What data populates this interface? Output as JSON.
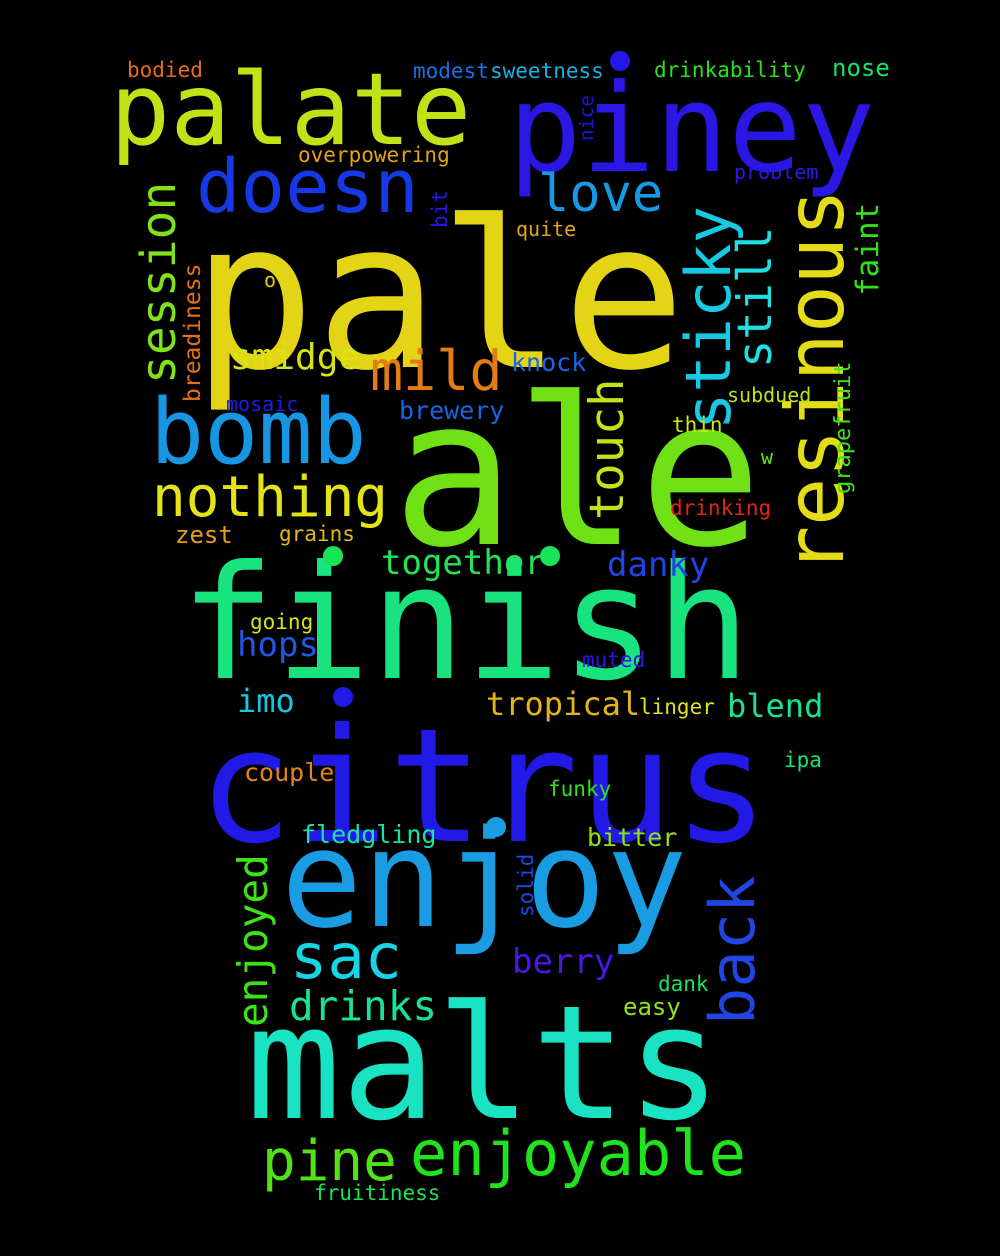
{
  "words": [
    {
      "id": "pale",
      "text": "pale",
      "color": "#e3d415"
    },
    {
      "id": "ale",
      "text": "ale",
      "color": "#6fe114"
    },
    {
      "id": "finish",
      "text": "finish",
      "color": "#18e37f"
    },
    {
      "id": "citrus",
      "text": "citrus",
      "color": "#2319e6"
    },
    {
      "id": "malts",
      "text": "malts",
      "color": "#19e3c3"
    },
    {
      "id": "enjoy",
      "text": "enjoy",
      "color": "#1a9ce3"
    },
    {
      "id": "piney",
      "text": "piney",
      "color": "#2a17e3"
    },
    {
      "id": "palate",
      "text": "palate",
      "color": "#bfe316"
    },
    {
      "id": "bomb",
      "text": "bomb",
      "color": "#1696e3"
    },
    {
      "id": "resinous",
      "text": "resinous",
      "color": "#e3dc16"
    },
    {
      "id": "doesn",
      "text": "doesn",
      "color": "#1739e3"
    },
    {
      "id": "sticky",
      "text": "sticky",
      "color": "#17c9e3"
    },
    {
      "id": "enjoyable",
      "text": "enjoyable",
      "color": "#1fe31c"
    },
    {
      "id": "back",
      "text": "back",
      "color": "#2045e3"
    },
    {
      "id": "sac",
      "text": "sac",
      "color": "#17d5e3"
    },
    {
      "id": "pine",
      "text": "pine",
      "color": "#52e317"
    },
    {
      "id": "nothing",
      "text": "nothing",
      "color": "#e3e317"
    },
    {
      "id": "mild",
      "text": "mild",
      "color": "#e37b17"
    },
    {
      "id": "love",
      "text": "love",
      "color": "#179ae3"
    },
    {
      "id": "session",
      "text": "session",
      "color": "#81e317"
    },
    {
      "id": "touch",
      "text": "touch",
      "color": "#c3e317"
    },
    {
      "id": "still",
      "text": "still",
      "color": "#1ee0e3"
    },
    {
      "id": "enjoyed",
      "text": "enjoyed",
      "color": "#3ee317"
    },
    {
      "id": "drinks",
      "text": "drinks",
      "color": "#1be393"
    },
    {
      "id": "smidge",
      "text": "smidge",
      "color": "#d8e317"
    },
    {
      "id": "together",
      "text": "together",
      "color": "#23e35a"
    },
    {
      "id": "berry",
      "text": "berry",
      "color": "#4a17e3"
    },
    {
      "id": "danky",
      "text": "danky",
      "color": "#2244e3"
    },
    {
      "id": "hops",
      "text": "hops",
      "color": "#2257e3"
    },
    {
      "id": "blend",
      "text": "blend",
      "color": "#17e395"
    },
    {
      "id": "tropical",
      "text": "tropical",
      "color": "#e3b417"
    },
    {
      "id": "imo",
      "text": "imo",
      "color": "#17c6e3"
    },
    {
      "id": "faint",
      "text": "faint",
      "color": "#30e317"
    },
    {
      "id": "grapefruit",
      "text": "grapefruit",
      "color": "#42e317"
    },
    {
      "id": "fledgling",
      "text": "fledgling",
      "color": "#17e3a6"
    },
    {
      "id": "couple",
      "text": "couple",
      "color": "#e38517"
    },
    {
      "id": "bitter",
      "text": "bitter",
      "color": "#8ce317"
    },
    {
      "id": "brewery",
      "text": "brewery",
      "color": "#1766e3"
    },
    {
      "id": "knock",
      "text": "knock",
      "color": "#1766e3"
    },
    {
      "id": "breadiness",
      "text": "breadiness",
      "color": "#e37117"
    },
    {
      "id": "nose",
      "text": "nose",
      "color": "#17e365"
    },
    {
      "id": "overpowering",
      "text": "overpowering",
      "color": "#e3a317"
    },
    {
      "id": "drinkability",
      "text": "drinkability",
      "color": "#28e317"
    },
    {
      "id": "sweetness",
      "text": "sweetness",
      "color": "#17b2e3"
    },
    {
      "id": "modest",
      "text": "modest",
      "color": "#1772e3"
    },
    {
      "id": "bodied",
      "text": "bodied",
      "color": "#e36d17"
    },
    {
      "id": "nice",
      "text": "nice",
      "color": "#1717e3"
    },
    {
      "id": "problem",
      "text": "problem",
      "color": "#2d17e3"
    },
    {
      "id": "bit",
      "text": "bit",
      "color": "#2617e3"
    },
    {
      "id": "quite",
      "text": "quite",
      "color": "#e3a717"
    },
    {
      "id": "o",
      "text": "o",
      "color": "#e3c817"
    },
    {
      "id": "mosaic",
      "text": "mosaic",
      "color": "#1c1ee3"
    },
    {
      "id": "subdued",
      "text": "subdued",
      "color": "#bde317"
    },
    {
      "id": "thin",
      "text": "thin",
      "color": "#d3e317"
    },
    {
      "id": "w",
      "text": "w",
      "color": "#6ae317"
    },
    {
      "id": "drinking",
      "text": "drinking",
      "color": "#e32517"
    },
    {
      "id": "zest",
      "text": "zest",
      "color": "#e3a017"
    },
    {
      "id": "grains",
      "text": "grains",
      "color": "#e3b917"
    },
    {
      "id": "going",
      "text": "going",
      "color": "#dae317"
    },
    {
      "id": "muted",
      "text": "muted",
      "color": "#2a17e3"
    },
    {
      "id": "linger",
      "text": "linger",
      "color": "#e3e317"
    },
    {
      "id": "ipa",
      "text": "ipa",
      "color": "#17e36d"
    },
    {
      "id": "funky",
      "text": "funky",
      "color": "#2de317"
    },
    {
      "id": "solid",
      "text": "solid",
      "color": "#2047e3"
    },
    {
      "id": "dank",
      "text": "dank",
      "color": "#17e35f"
    },
    {
      "id": "easy",
      "text": "easy",
      "color": "#92e317"
    },
    {
      "id": "fruitiness",
      "text": "fruitiness",
      "color": "#17e35b"
    }
  ],
  "dots": [
    {
      "id": "dot-1",
      "color": "#2319e6"
    },
    {
      "id": "dot-2",
      "color": "#19e35a"
    },
    {
      "id": "dot-3",
      "color": "#19e35a"
    },
    {
      "id": "dot-4",
      "color": "#2319e6"
    },
    {
      "id": "dot-5",
      "color": "#1a9ce3"
    }
  ]
}
